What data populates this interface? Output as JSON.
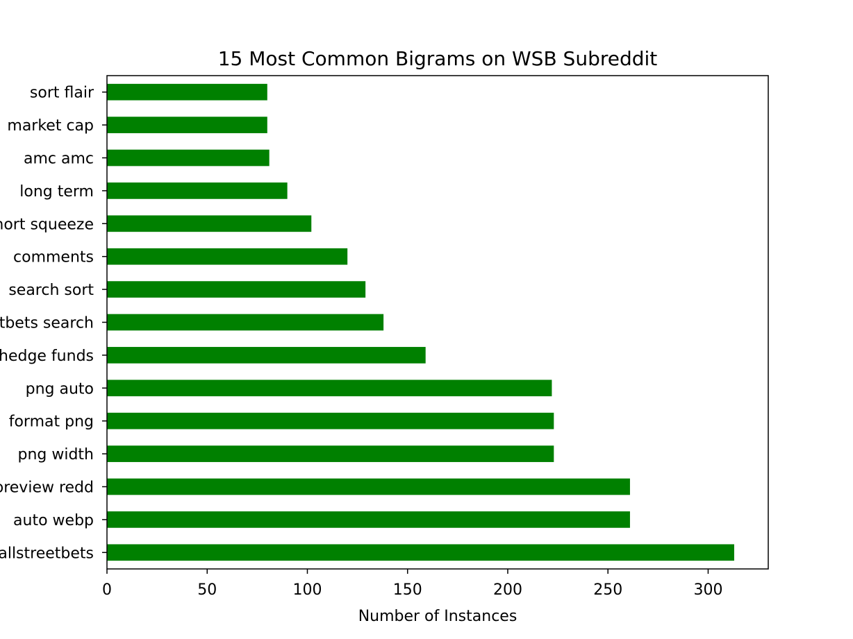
{
  "chart_data": {
    "type": "bar",
    "orientation": "horizontal",
    "title": "15 Most Common Bigrams on WSB Subreddit",
    "xlabel": "Number of Instances",
    "ylabel": "",
    "xlim": [
      0,
      330
    ],
    "xticks": [
      0,
      50,
      100,
      150,
      200,
      250,
      300
    ],
    "grid": false,
    "bar_color": "#008000",
    "categories": [
      "sort flair",
      "market cap",
      "amc amc",
      "long term",
      "short squeeze",
      "comments",
      "search sort",
      "wallstreetbets search",
      "hedge funds",
      "png auto",
      "format png",
      "png width",
      "preview redd",
      "auto webp",
      "wallstreetbets"
    ],
    "values": [
      80,
      80,
      81,
      90,
      102,
      120,
      129,
      138,
      159,
      222,
      223,
      223,
      261,
      261,
      313
    ]
  }
}
